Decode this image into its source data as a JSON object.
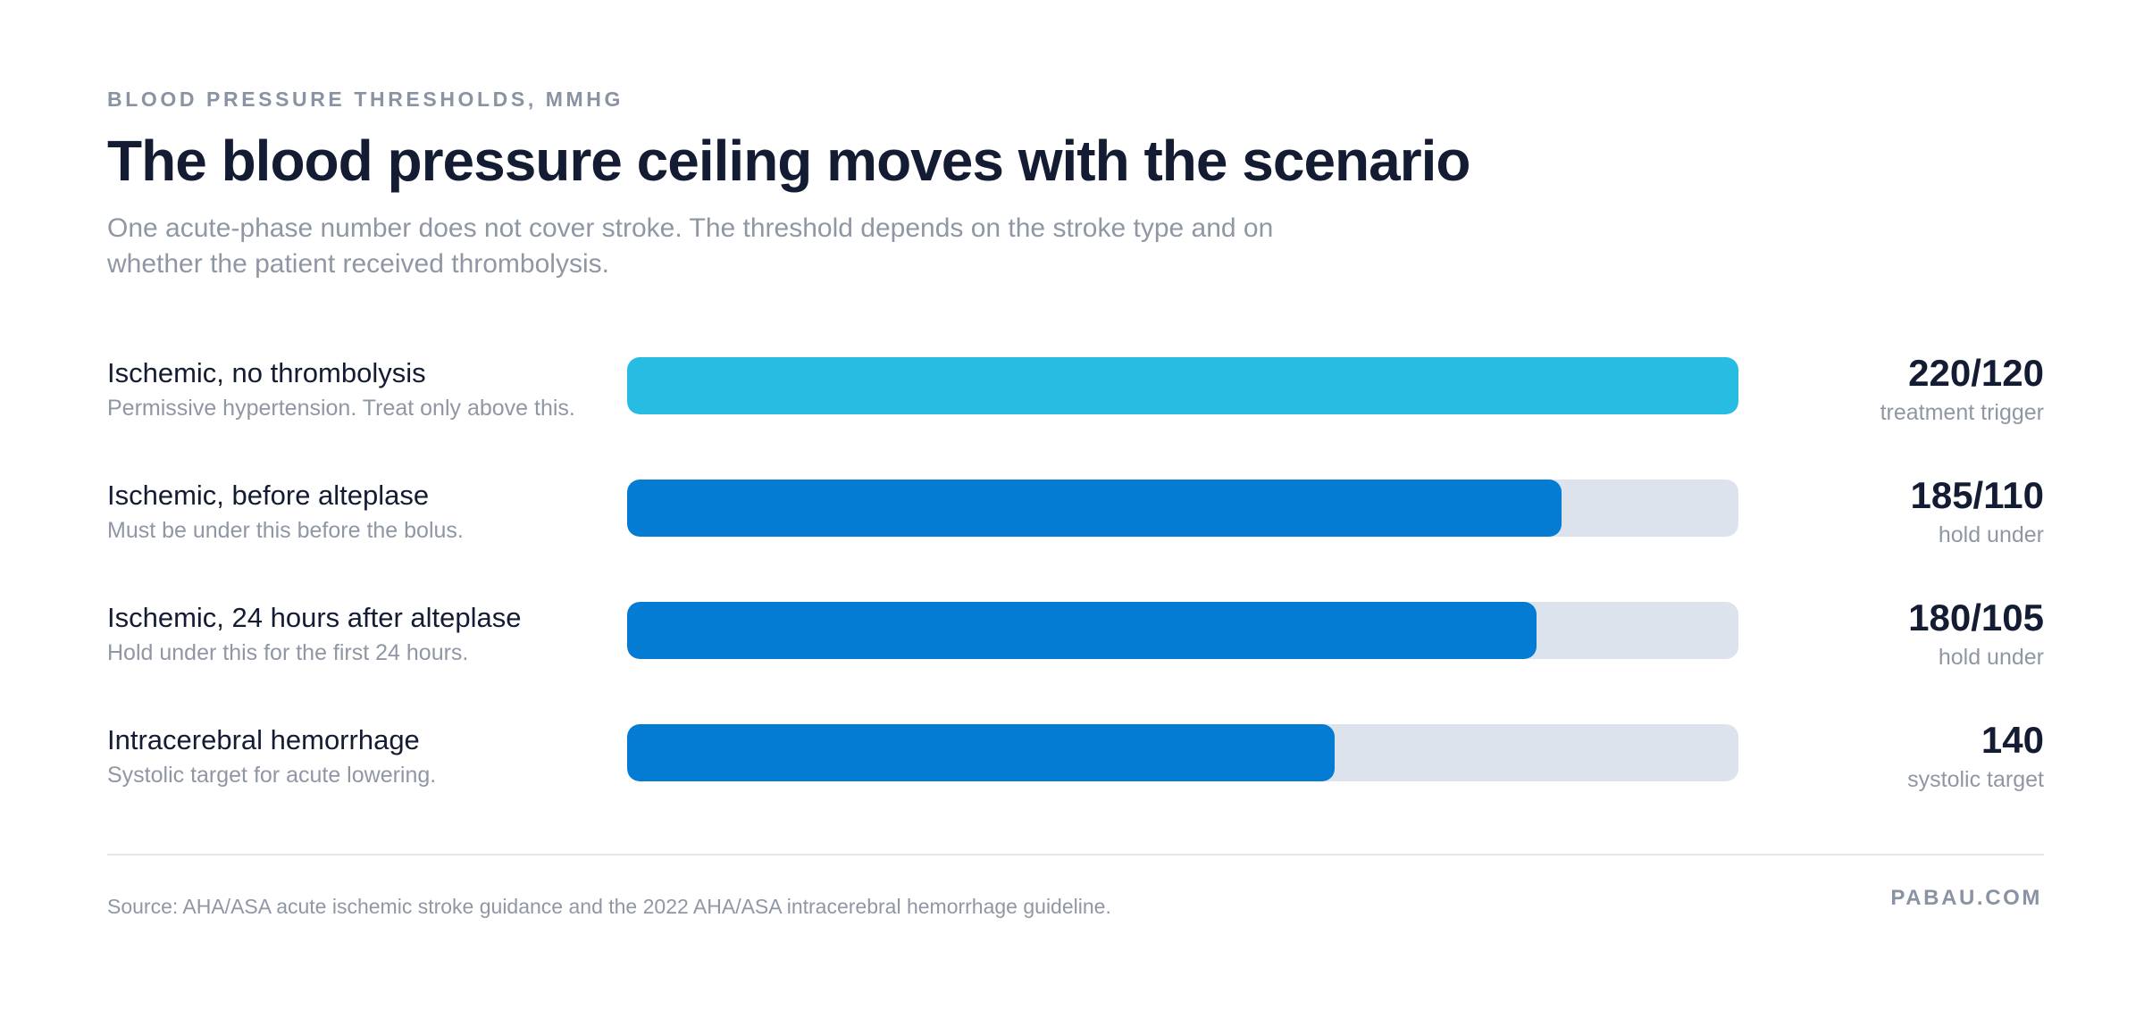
{
  "eyebrow": "BLOOD PRESSURE THRESHOLDS, MMHG",
  "title": "The blood pressure ceiling moves with the scenario",
  "subtitle": "One acute-phase number does not cover stroke. The threshold depends on the stroke type and on whether the patient received thrombolysis.",
  "chart_data": {
    "type": "bar",
    "orientation": "horizontal",
    "xlim": [
      0,
      220
    ],
    "grid": false,
    "value_basis": "systolic mmHg",
    "categories": [
      "Ischemic, no thrombolysis",
      "Ischemic, before alteplase",
      "Ischemic, 24 hours after alteplase",
      "Intracerebral hemorrhage"
    ],
    "values": [
      220,
      185,
      180,
      140
    ],
    "rows": [
      {
        "label": "Ischemic, no thrombolysis",
        "note": "Permissive hypertension. Treat only above this.",
        "value": 220,
        "value_label": "220/120",
        "unit": "treatment trigger",
        "color": "#27bde3"
      },
      {
        "label": "Ischemic, before alteplase",
        "note": "Must be under this before the bolus.",
        "value": 185,
        "value_label": "185/110",
        "unit": "hold under",
        "color": "#057cd4"
      },
      {
        "label": "Ischemic, 24 hours after alteplase",
        "note": "Hold under this for the first 24 hours.",
        "value": 180,
        "value_label": "180/105",
        "unit": "hold under",
        "color": "#057cd4"
      },
      {
        "label": "Intracerebral hemorrhage",
        "note": "Systolic target for acute lowering.",
        "value": 140,
        "value_label": "140",
        "unit": "systolic target",
        "color": "#057cd4"
      }
    ],
    "track_color": "#dde3ec"
  },
  "footer": {
    "source": "Source: AHA/ASA acute ischemic stroke guidance and the 2022 AHA/ASA intracerebral hemorrhage guideline.",
    "brand": "PABAU.COM"
  }
}
